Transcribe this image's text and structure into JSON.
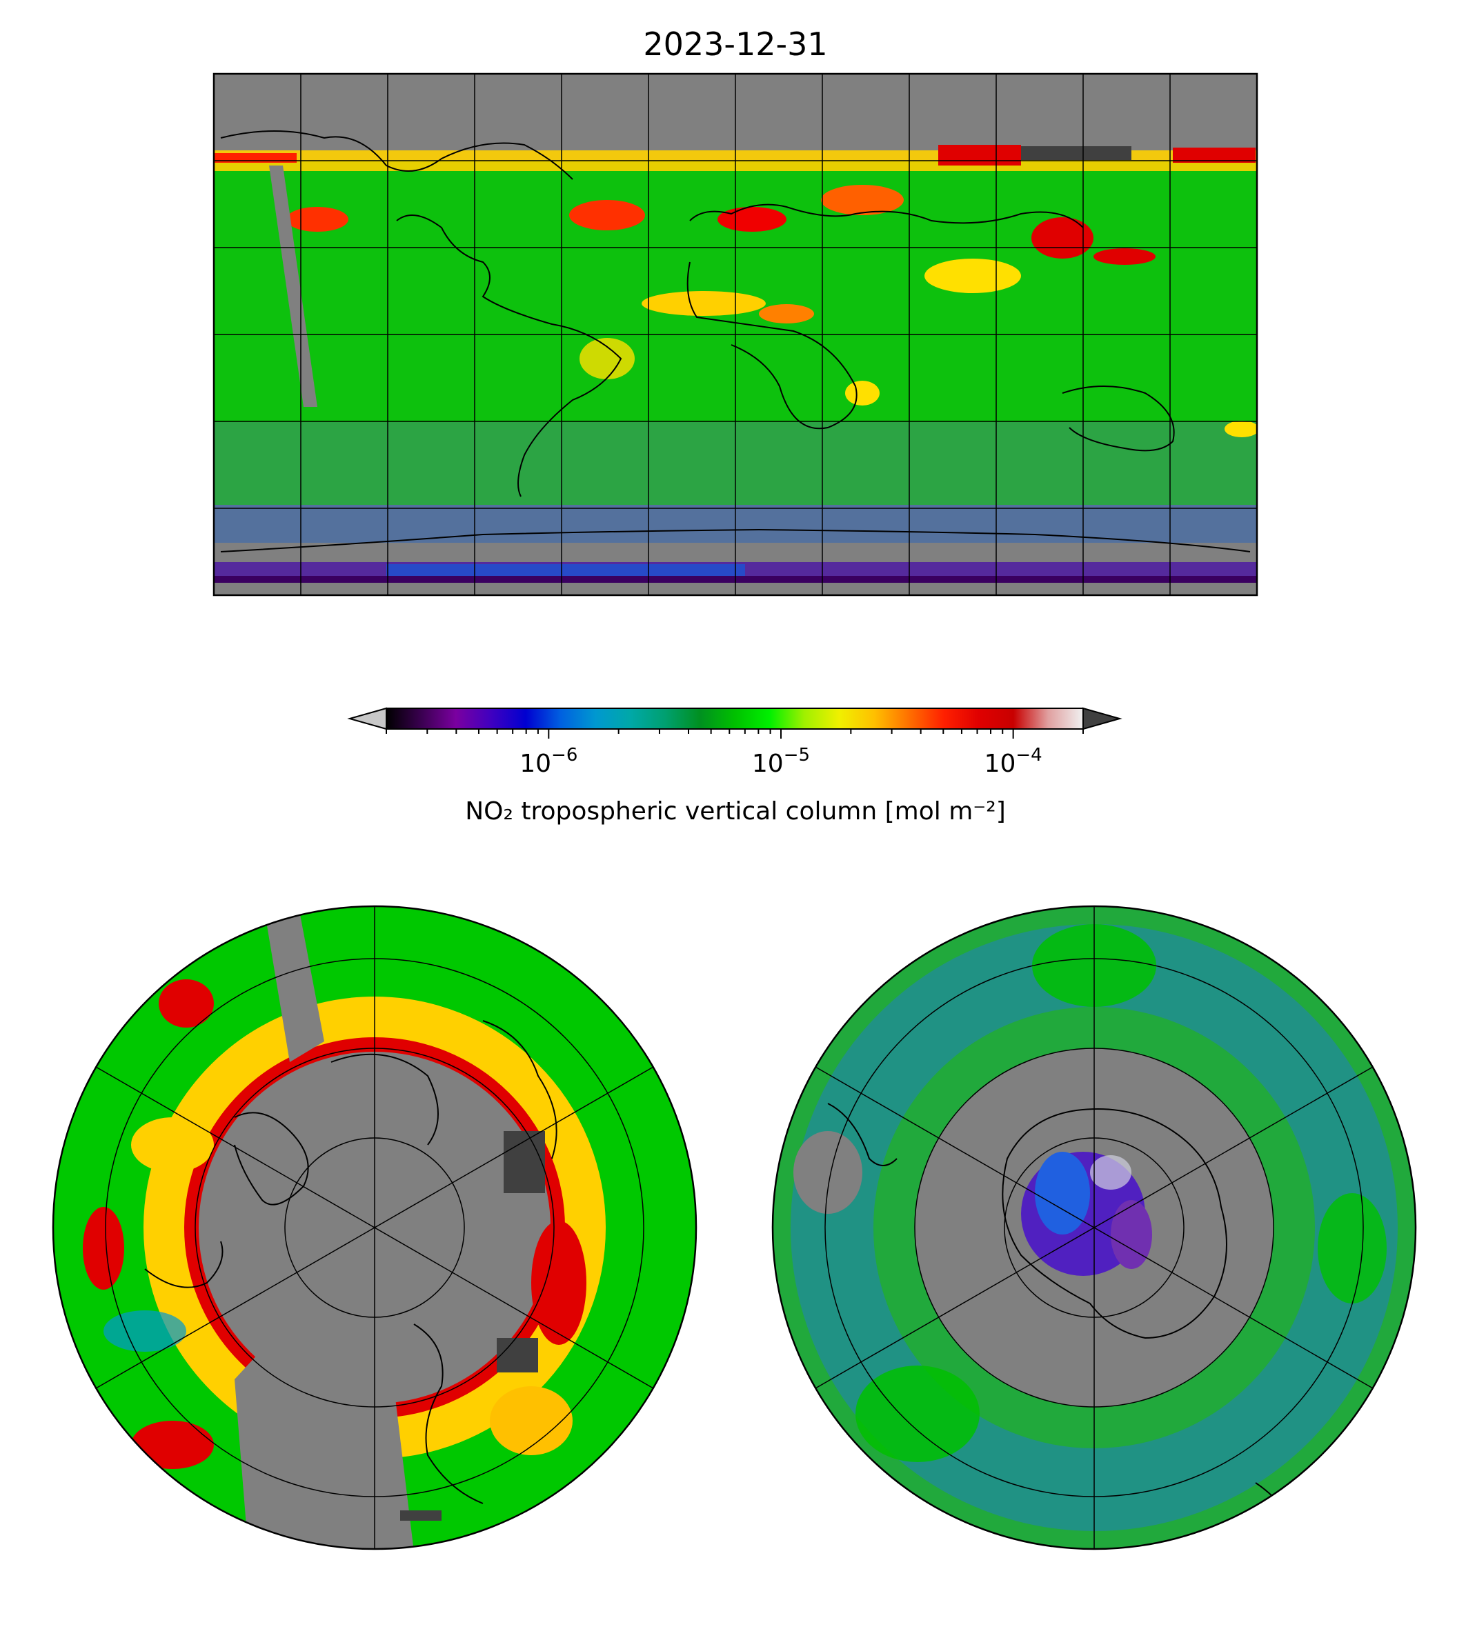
{
  "title": "2023-12-31",
  "colorbar": {
    "label": "NO₂ tropospheric vertical column [mol m⁻²]",
    "scale": "log",
    "range": [
      2e-07,
      0.0002
    ],
    "ticks": [
      {
        "base": "10",
        "exp": "−6",
        "value": 1e-06
      },
      {
        "base": "10",
        "exp": "−5",
        "value": 1e-05
      },
      {
        "base": "10",
        "exp": "−4",
        "value": 0.0001
      }
    ],
    "extend": "both",
    "under_color": "#c8c8c8",
    "over_color": "#404040",
    "colors": [
      "#000000",
      "#3a0050",
      "#7a00a0",
      "#4000c0",
      "#0000d0",
      "#0060e0",
      "#0098d0",
      "#00a8a8",
      "#00a070",
      "#009020",
      "#00c000",
      "#00f000",
      "#a0f000",
      "#f0f000",
      "#ffc000",
      "#ff7000",
      "#ff2000",
      "#e00000",
      "#c80000",
      "#e0a0a0",
      "#f0f0f0"
    ]
  },
  "maps": {
    "global": {
      "projection": "PlateCarree",
      "background": "#808080"
    },
    "north_polar": {
      "projection": "NorthPolarStereo",
      "background": "#808080"
    },
    "south_polar": {
      "projection": "SouthPolarStereo",
      "background": "#808080"
    }
  }
}
